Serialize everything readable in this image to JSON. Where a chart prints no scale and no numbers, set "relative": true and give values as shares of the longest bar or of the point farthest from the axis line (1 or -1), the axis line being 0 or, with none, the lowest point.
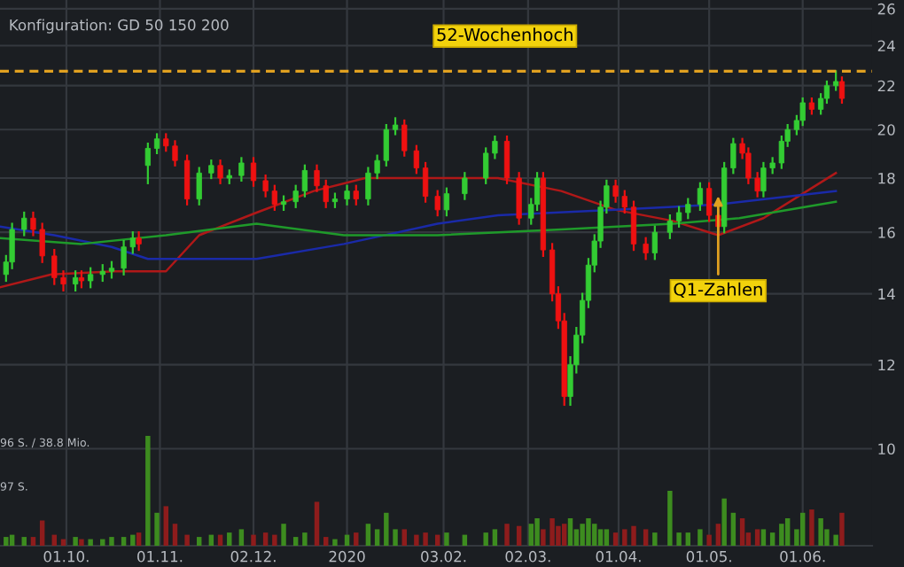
{
  "chart_data": [
    {
      "type": "candlestick",
      "subtitle": "Konfiguration: GD 50 150 200",
      "x": [
        "2019-09-11",
        "2019-09-13",
        "2019-09-17",
        "2019-09-20",
        "2019-09-23",
        "2019-09-27",
        "2019-09-30",
        "2019-10-04",
        "2019-10-06",
        "2019-10-09",
        "2019-10-13",
        "2019-10-16",
        "2019-10-20",
        "2019-10-23",
        "2019-10-25",
        "2019-10-28",
        "2019-10-31",
        "2019-11-03",
        "2019-11-06",
        "2019-11-10",
        "2019-11-14",
        "2019-11-18",
        "2019-11-21",
        "2019-11-24",
        "2019-11-28",
        "2019-12-02",
        "2019-12-06",
        "2019-12-09",
        "2019-12-12",
        "2019-12-16",
        "2019-12-19",
        "2019-12-23",
        "2019-12-26",
        "2019-12-29",
        "2020-01-02",
        "2020-01-05",
        "2020-01-09",
        "2020-01-12",
        "2020-01-15",
        "2020-01-18",
        "2020-01-21",
        "2020-01-25",
        "2020-01-28",
        "2020-02-01",
        "2020-02-04",
        "2020-02-10",
        "2020-02-17",
        "2020-02-20",
        "2020-02-24",
        "2020-02-28",
        "2020-03-03",
        "2020-03-05",
        "2020-03-07",
        "2020-03-10",
        "2020-03-12",
        "2020-03-14",
        "2020-03-16",
        "2020-03-18",
        "2020-03-20",
        "2020-03-22",
        "2020-03-24",
        "2020-03-26",
        "2020-03-28",
        "2020-03-31",
        "2020-04-03",
        "2020-04-06",
        "2020-04-10",
        "2020-04-13",
        "2020-04-18",
        "2020-04-21",
        "2020-04-24",
        "2020-04-28",
        "2020-05-01",
        "2020-05-04",
        "2020-05-06",
        "2020-05-09",
        "2020-05-12",
        "2020-05-14",
        "2020-05-17",
        "2020-05-19",
        "2020-05-22",
        "2020-05-25",
        "2020-05-27",
        "2020-05-30",
        "2020-06-01",
        "2020-06-04",
        "2020-06-07",
        "2020-06-09",
        "2020-06-12",
        "2020-06-14"
      ],
      "ohlc": [
        [
          14.6,
          15.2,
          14.4,
          15.0
        ],
        [
          15.0,
          16.3,
          14.8,
          16.1
        ],
        [
          16.1,
          16.7,
          15.9,
          16.5
        ],
        [
          16.5,
          16.7,
          15.9,
          16.1
        ],
        [
          16.1,
          16.3,
          15.0,
          15.2
        ],
        [
          15.2,
          15.4,
          14.3,
          14.5
        ],
        [
          14.5,
          14.7,
          14.1,
          14.3
        ],
        [
          14.3,
          14.7,
          14.1,
          14.5
        ],
        [
          14.5,
          14.7,
          14.2,
          14.4
        ],
        [
          14.4,
          14.8,
          14.2,
          14.6
        ],
        [
          14.6,
          14.9,
          14.4,
          14.7
        ],
        [
          14.7,
          15.0,
          14.5,
          14.8
        ],
        [
          14.8,
          15.7,
          14.6,
          15.5
        ],
        [
          15.5,
          16.0,
          15.3,
          15.8
        ],
        [
          15.8,
          16.0,
          15.4,
          15.6
        ],
        [
          18.5,
          19.4,
          17.8,
          19.2
        ],
        [
          19.2,
          19.8,
          19.0,
          19.6
        ],
        [
          19.6,
          19.8,
          19.1,
          19.3
        ],
        [
          19.3,
          19.5,
          18.5,
          18.7
        ],
        [
          18.7,
          18.9,
          17.0,
          17.2
        ],
        [
          17.2,
          18.4,
          17.0,
          18.2
        ],
        [
          18.2,
          18.7,
          18.0,
          18.5
        ],
        [
          18.5,
          18.7,
          17.8,
          18.0
        ],
        [
          18.0,
          18.3,
          17.8,
          18.1
        ],
        [
          18.1,
          18.8,
          17.9,
          18.6
        ],
        [
          18.6,
          18.8,
          17.7,
          17.9
        ],
        [
          17.9,
          18.1,
          17.3,
          17.5
        ],
        [
          17.5,
          17.7,
          16.8,
          17.0
        ],
        [
          17.0,
          17.3,
          16.8,
          17.1
        ],
        [
          17.1,
          17.7,
          16.9,
          17.5
        ],
        [
          17.5,
          18.5,
          17.3,
          18.3
        ],
        [
          18.3,
          18.5,
          17.5,
          17.7
        ],
        [
          17.7,
          17.9,
          16.9,
          17.1
        ],
        [
          17.1,
          17.4,
          16.9,
          17.2
        ],
        [
          17.2,
          17.7,
          17.0,
          17.5
        ],
        [
          17.5,
          17.7,
          17.0,
          17.2
        ],
        [
          17.2,
          18.4,
          17.0,
          18.2
        ],
        [
          18.2,
          18.9,
          18.0,
          18.7
        ],
        [
          18.7,
          20.2,
          18.5,
          20.0
        ],
        [
          20.0,
          20.5,
          19.8,
          20.2
        ],
        [
          20.2,
          20.4,
          18.9,
          19.1
        ],
        [
          19.1,
          19.3,
          18.2,
          18.4
        ],
        [
          18.4,
          18.6,
          17.1,
          17.3
        ],
        [
          17.3,
          17.5,
          16.6,
          16.8
        ],
        [
          16.8,
          17.6,
          16.6,
          17.4
        ],
        [
          17.4,
          18.2,
          17.2,
          18.0
        ],
        [
          18.0,
          19.2,
          17.8,
          19.0
        ],
        [
          19.0,
          19.7,
          18.8,
          19.5
        ],
        [
          19.5,
          19.7,
          17.8,
          18.0
        ],
        [
          18.0,
          18.2,
          16.3,
          16.5
        ],
        [
          16.5,
          17.2,
          16.3,
          17.0
        ],
        [
          17.0,
          18.2,
          16.8,
          18.0
        ],
        [
          18.0,
          18.2,
          15.2,
          15.4
        ],
        [
          15.4,
          15.6,
          13.8,
          14.0
        ],
        [
          14.0,
          14.2,
          13.0,
          13.2
        ],
        [
          13.2,
          13.4,
          11.0,
          11.2
        ],
        [
          11.2,
          12.2,
          11.0,
          12.0
        ],
        [
          12.0,
          13.0,
          11.8,
          12.8
        ],
        [
          12.8,
          14.0,
          12.6,
          13.8
        ],
        [
          13.8,
          15.1,
          13.6,
          14.9
        ],
        [
          14.9,
          15.9,
          14.7,
          15.7
        ],
        [
          15.7,
          17.1,
          15.5,
          16.9
        ],
        [
          16.9,
          17.9,
          16.7,
          17.7
        ],
        [
          17.7,
          17.9,
          17.1,
          17.3
        ],
        [
          17.3,
          17.5,
          16.7,
          16.9
        ],
        [
          16.9,
          17.1,
          15.4,
          15.6
        ],
        [
          15.6,
          15.8,
          15.1,
          15.3
        ],
        [
          15.3,
          16.2,
          15.1,
          16.0
        ],
        [
          16.0,
          16.6,
          15.8,
          16.4
        ],
        [
          16.4,
          16.9,
          16.2,
          16.7
        ],
        [
          16.7,
          17.2,
          16.5,
          17.0
        ],
        [
          17.0,
          17.8,
          16.8,
          17.6
        ],
        [
          17.6,
          17.8,
          16.4,
          16.6
        ],
        [
          16.6,
          16.8,
          16.0,
          16.2
        ],
        [
          16.2,
          18.6,
          16.0,
          18.4
        ],
        [
          18.4,
          19.6,
          18.2,
          19.4
        ],
        [
          19.4,
          19.6,
          18.8,
          19.0
        ],
        [
          19.0,
          19.2,
          17.8,
          18.0
        ],
        [
          18.0,
          18.2,
          17.3,
          17.5
        ],
        [
          17.5,
          18.6,
          17.3,
          18.4
        ],
        [
          18.4,
          18.8,
          18.2,
          18.6
        ],
        [
          18.6,
          19.7,
          18.4,
          19.5
        ],
        [
          19.5,
          20.2,
          19.3,
          20.0
        ],
        [
          20.0,
          20.6,
          19.8,
          20.4
        ],
        [
          20.4,
          21.4,
          20.2,
          21.2
        ],
        [
          21.2,
          21.4,
          20.7,
          20.9
        ],
        [
          20.9,
          21.6,
          20.7,
          21.4
        ],
        [
          21.4,
          22.2,
          21.2,
          22.0
        ],
        [
          22.0,
          22.7,
          21.8,
          22.2
        ],
        [
          22.2,
          22.4,
          21.2,
          21.4
        ]
      ],
      "colors": [
        "#33cc33",
        "#33cc33",
        "#33cc33",
        "#ee1111",
        "#ee1111",
        "#ee1111",
        "#ee1111",
        "#33cc33",
        "#ee1111",
        "#33cc33",
        "#33cc33",
        "#33cc33",
        "#33cc33",
        "#33cc33",
        "#ee1111",
        "#33cc33",
        "#33cc33",
        "#ee1111",
        "#ee1111",
        "#ee1111",
        "#33cc33",
        "#33cc33",
        "#ee1111",
        "#33cc33",
        "#33cc33",
        "#ee1111",
        "#ee1111",
        "#ee1111",
        "#33cc33",
        "#33cc33",
        "#33cc33",
        "#ee1111",
        "#ee1111",
        "#33cc33",
        "#33cc33",
        "#ee1111",
        "#33cc33",
        "#33cc33",
        "#33cc33",
        "#33cc33",
        "#ee1111",
        "#ee1111",
        "#ee1111",
        "#ee1111",
        "#33cc33",
        "#33cc33",
        "#33cc33",
        "#33cc33",
        "#ee1111",
        "#ee1111",
        "#33cc33",
        "#33cc33",
        "#ee1111",
        "#ee1111",
        "#ee1111",
        "#ee1111",
        "#33cc33",
        "#33cc33",
        "#33cc33",
        "#33cc33",
        "#33cc33",
        "#33cc33",
        "#33cc33",
        "#ee1111",
        "#ee1111",
        "#ee1111",
        "#ee1111",
        "#33cc33",
        "#33cc33",
        "#33cc33",
        "#33cc33",
        "#33cc33",
        "#ee1111",
        "#ee1111",
        "#33cc33",
        "#33cc33",
        "#ee1111",
        "#ee1111",
        "#ee1111",
        "#33cc33",
        "#33cc33",
        "#33cc33",
        "#33cc33",
        "#33cc33",
        "#33cc33",
        "#ee1111",
        "#33cc33",
        "#33cc33",
        "#33cc33",
        "#ee1111"
      ],
      "series": [
        {
          "type": "line",
          "color": "#b01818",
          "x": [
            "2019-09-09",
            "2019-09-26",
            "2019-10-17",
            "2019-11-03",
            "2019-11-14",
            "2019-12-03",
            "2019-12-22",
            "2020-01-08",
            "2020-02-01",
            "2020-02-21",
            "2020-03-13",
            "2020-03-31",
            "2020-04-19",
            "2020-05-04",
            "2020-05-19",
            "2020-06-01",
            "2020-06-12"
          ],
          "values": [
            14.2,
            14.6,
            14.7,
            14.7,
            15.9,
            16.7,
            17.5,
            18.0,
            18.0,
            18.0,
            17.5,
            16.8,
            16.4,
            15.9,
            16.5,
            17.4,
            18.2
          ]
        },
        {
          "type": "line",
          "color": "#1a2aa8",
          "x": [
            "2019-09-09",
            "2019-09-27",
            "2019-10-16",
            "2019-10-28",
            "2019-12-03",
            "2020-01-01",
            "2020-02-01",
            "2020-02-21",
            "2020-03-31",
            "2020-05-04",
            "2020-06-12"
          ],
          "values": [
            16.2,
            15.9,
            15.5,
            15.1,
            15.1,
            15.6,
            16.3,
            16.6,
            16.8,
            17.0,
            17.5
          ]
        },
        {
          "type": "line",
          "color": "#1f9a2a",
          "x": [
            "2019-09-09",
            "2019-10-06",
            "2019-11-03",
            "2019-12-03",
            "2020-01-01",
            "2020-02-01",
            "2020-03-13",
            "2020-04-19",
            "2020-05-11",
            "2020-06-12"
          ],
          "values": [
            15.8,
            15.6,
            15.9,
            16.3,
            15.9,
            15.9,
            16.1,
            16.3,
            16.5,
            17.1
          ]
        }
      ],
      "log": true,
      "xlim": [
        "2019-09-09",
        "2020-06-24"
      ],
      "ylim": [
        8.1,
        26.5
      ],
      "xticks": [
        {
          "value": "2019-10-01",
          "label": "01.10."
        },
        {
          "value": "2019-11-01",
          "label": "01.11."
        },
        {
          "value": "2019-12-02",
          "label": "02.12."
        },
        {
          "value": "2020-01-02",
          "label": "2020"
        },
        {
          "value": "2020-02-03",
          "label": "03.02."
        },
        {
          "value": "2020-03-02",
          "label": "02.03."
        },
        {
          "value": "2020-04-01",
          "label": "01.04."
        },
        {
          "value": "2020-05-01",
          "label": "01.05."
        },
        {
          "value": "2020-06-01",
          "label": "01.06."
        }
      ],
      "yticks": [
        10,
        12,
        14,
        16,
        18,
        20,
        22,
        24,
        26
      ],
      "grid": true,
      "ref_lines": [
        {
          "axis": "y",
          "value": 22.7,
          "label": "52-Wochenhoch",
          "color": "#e0a020",
          "line_style": "dashed"
        }
      ],
      "annotations": [
        {
          "text": "Q1-Zahlen",
          "x": "2020-05-04",
          "y": 17.5
        }
      ]
    },
    {
      "type": "bar",
      "relative": true,
      "x": [
        "2019-09-11",
        "2019-09-13",
        "2019-09-17",
        "2019-09-20",
        "2019-09-23",
        "2019-09-27",
        "2019-09-30",
        "2019-10-04",
        "2019-10-06",
        "2019-10-09",
        "2019-10-13",
        "2019-10-16",
        "2019-10-20",
        "2019-10-23",
        "2019-10-25",
        "2019-10-28",
        "2019-10-31",
        "2019-11-03",
        "2019-11-06",
        "2019-11-10",
        "2019-11-14",
        "2019-11-18",
        "2019-11-21",
        "2019-11-24",
        "2019-11-28",
        "2019-12-02",
        "2019-12-06",
        "2019-12-09",
        "2019-12-12",
        "2019-12-16",
        "2019-12-19",
        "2019-12-23",
        "2019-12-26",
        "2019-12-29",
        "2020-01-02",
        "2020-01-05",
        "2020-01-09",
        "2020-01-12",
        "2020-01-15",
        "2020-01-18",
        "2020-01-21",
        "2020-01-25",
        "2020-01-28",
        "2020-02-01",
        "2020-02-04",
        "2020-02-10",
        "2020-02-17",
        "2020-02-20",
        "2020-02-24",
        "2020-02-28",
        "2020-03-03",
        "2020-03-05",
        "2020-03-07",
        "2020-03-10",
        "2020-03-12",
        "2020-03-14",
        "2020-03-16",
        "2020-03-18",
        "2020-03-20",
        "2020-03-22",
        "2020-03-24",
        "2020-03-26",
        "2020-03-28",
        "2020-03-31",
        "2020-04-03",
        "2020-04-06",
        "2020-04-10",
        "2020-04-13",
        "2020-04-18",
        "2020-04-21",
        "2020-04-24",
        "2020-04-28",
        "2020-05-01",
        "2020-05-04",
        "2020-05-06",
        "2020-05-09",
        "2020-05-12",
        "2020-05-14",
        "2020-05-17",
        "2020-05-19",
        "2020-05-22",
        "2020-05-25",
        "2020-05-27",
        "2020-05-30",
        "2020-06-01",
        "2020-06-04",
        "2020-06-07",
        "2020-06-09",
        "2020-06-12",
        "2020-06-14"
      ],
      "values": [
        0.08,
        0.1,
        0.08,
        0.08,
        0.23,
        0.1,
        0.06,
        0.08,
        0.06,
        0.06,
        0.06,
        0.08,
        0.08,
        0.1,
        0.12,
        1.0,
        0.3,
        0.36,
        0.2,
        0.1,
        0.08,
        0.1,
        0.1,
        0.12,
        0.15,
        0.1,
        0.12,
        0.1,
        0.2,
        0.08,
        0.12,
        0.4,
        0.08,
        0.06,
        0.1,
        0.12,
        0.2,
        0.15,
        0.3,
        0.15,
        0.15,
        0.1,
        0.12,
        0.1,
        0.12,
        0.1,
        0.12,
        0.15,
        0.2,
        0.18,
        0.2,
        0.25,
        0.15,
        0.25,
        0.18,
        0.2,
        0.25,
        0.15,
        0.2,
        0.25,
        0.2,
        0.15,
        0.15,
        0.12,
        0.15,
        0.18,
        0.15,
        0.12,
        0.5,
        0.12,
        0.12,
        0.15,
        0.1,
        0.2,
        0.43,
        0.3,
        0.25,
        0.12,
        0.15,
        0.15,
        0.12,
        0.2,
        0.25,
        0.15,
        0.3,
        0.33,
        0.25,
        0.15,
        0.1,
        0.3
      ],
      "colors": [
        "#3d8c1f",
        "#3d8c1f",
        "#3d8c1f",
        "#8e1c1c",
        "#8e1c1c",
        "#8e1c1c",
        "#8e1c1c",
        "#3d8c1f",
        "#8e1c1c",
        "#3d8c1f",
        "#3d8c1f",
        "#3d8c1f",
        "#3d8c1f",
        "#3d8c1f",
        "#8e1c1c",
        "#3d8c1f",
        "#3d8c1f",
        "#8e1c1c",
        "#8e1c1c",
        "#8e1c1c",
        "#3d8c1f",
        "#3d8c1f",
        "#8e1c1c",
        "#3d8c1f",
        "#3d8c1f",
        "#8e1c1c",
        "#8e1c1c",
        "#8e1c1c",
        "#3d8c1f",
        "#3d8c1f",
        "#3d8c1f",
        "#8e1c1c",
        "#8e1c1c",
        "#3d8c1f",
        "#3d8c1f",
        "#8e1c1c",
        "#3d8c1f",
        "#3d8c1f",
        "#3d8c1f",
        "#3d8c1f",
        "#8e1c1c",
        "#8e1c1c",
        "#8e1c1c",
        "#8e1c1c",
        "#3d8c1f",
        "#3d8c1f",
        "#3d8c1f",
        "#3d8c1f",
        "#8e1c1c",
        "#8e1c1c",
        "#3d8c1f",
        "#3d8c1f",
        "#8e1c1c",
        "#8e1c1c",
        "#8e1c1c",
        "#8e1c1c",
        "#3d8c1f",
        "#3d8c1f",
        "#3d8c1f",
        "#3d8c1f",
        "#3d8c1f",
        "#3d8c1f",
        "#3d8c1f",
        "#8e1c1c",
        "#8e1c1c",
        "#8e1c1c",
        "#8e1c1c",
        "#3d8c1f",
        "#3d8c1f",
        "#3d8c1f",
        "#3d8c1f",
        "#3d8c1f",
        "#8e1c1c",
        "#8e1c1c",
        "#3d8c1f",
        "#3d8c1f",
        "#8e1c1c",
        "#8e1c1c",
        "#8e1c1c",
        "#3d8c1f",
        "#3d8c1f",
        "#3d8c1f",
        "#3d8c1f",
        "#3d8c1f",
        "#3d8c1f",
        "#8e1c1c",
        "#3d8c1f",
        "#3d8c1f",
        "#3d8c1f",
        "#8e1c1c"
      ],
      "xlim": [
        "2019-09-09",
        "2020-06-24"
      ],
      "annotations": [
        "96 S. / 38.8 Mio.",
        "97 S."
      ]
    }
  ]
}
